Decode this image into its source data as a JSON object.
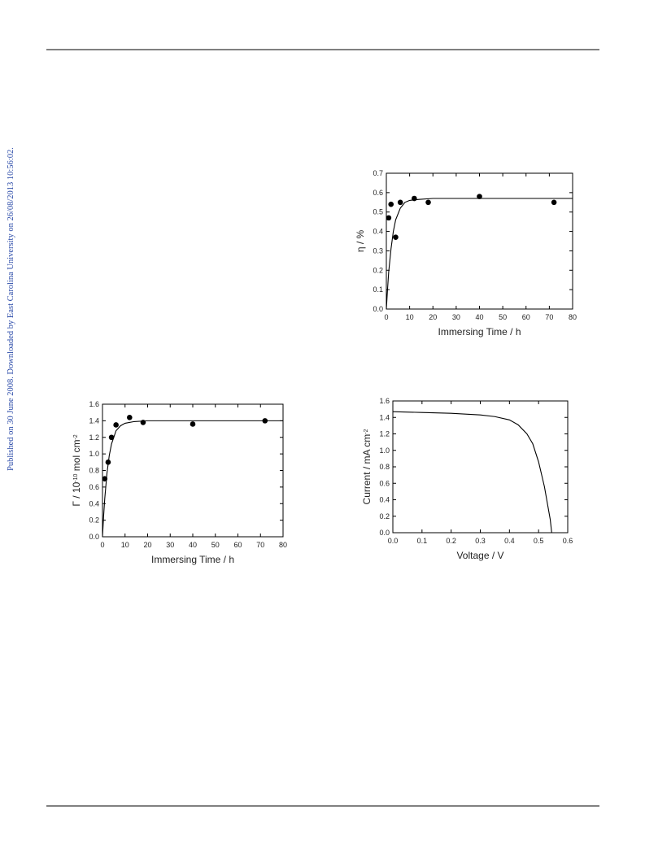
{
  "side_note": "Published on 30 June 2008. Downloaded by East Carolina University on 26/08/2013 10:56:02.",
  "chart_data": [
    {
      "type": "scatter",
      "x_label": "Immersing Time / h",
      "y_label": [
        "η / %"
      ],
      "xlim": [
        0,
        80
      ],
      "xticks": [
        0,
        10,
        20,
        30,
        40,
        50,
        60,
        70,
        80
      ],
      "ylim": [
        0,
        0.7
      ],
      "yticks": [
        {
          "value": 0,
          "label": "0.0"
        },
        0.1,
        0.2,
        0.3,
        0.4,
        0.5,
        0.6,
        0.7
      ],
      "series": [
        {
          "type": "scatter",
          "color": "#000000",
          "x": [
            1,
            2,
            4,
            6,
            12,
            18,
            40,
            72
          ],
          "values": [
            0.47,
            0.54,
            0.37,
            0.55,
            0.57,
            0.55,
            0.58,
            0.55
          ]
        },
        {
          "type": "line",
          "color": "#000000",
          "x": [
            0,
            0.5,
            1,
            2,
            3,
            4,
            6,
            8,
            10,
            14,
            20,
            30,
            80
          ],
          "values": [
            0,
            0.1,
            0.19,
            0.31,
            0.4,
            0.46,
            0.52,
            0.55,
            0.56,
            0.565,
            0.57,
            0.57,
            0.57
          ]
        }
      ]
    },
    {
      "type": "scatter",
      "x_label": "Immersing Time / h",
      "y_label": [
        "Γ / 10",
        "-10",
        " mol cm",
        "-2"
      ],
      "xlim": [
        0,
        80
      ],
      "xticks": [
        0,
        10,
        20,
        30,
        40,
        50,
        60,
        70,
        80
      ],
      "ylim": [
        0,
        1.6
      ],
      "yticks": [
        {
          "value": 0,
          "label": "0.0"
        },
        0.2,
        0.4,
        0.6,
        0.8,
        {
          "value": 1,
          "label": "1.0"
        },
        1.2,
        1.4,
        1.6
      ],
      "series": [
        {
          "type": "scatter",
          "color": "#000000",
          "x": [
            1,
            2.5,
            4,
            6,
            12,
            18,
            40,
            72
          ],
          "values": [
            0.7,
            0.9,
            1.2,
            1.35,
            1.44,
            1.38,
            1.36,
            1.4
          ]
        },
        {
          "type": "line",
          "color": "#000000",
          "x": [
            0,
            0.5,
            1,
            2,
            3,
            4,
            6,
            8,
            10,
            14,
            20,
            30,
            80
          ],
          "values": [
            0,
            0.25,
            0.46,
            0.77,
            0.98,
            1.12,
            1.28,
            1.34,
            1.37,
            1.39,
            1.4,
            1.4,
            1.4
          ]
        }
      ]
    },
    {
      "type": "line",
      "x_label": "Voltage / V",
      "y_label": [
        "Current / mA cm",
        "-2"
      ],
      "xlim": [
        0,
        0.6
      ],
      "xticks": [
        {
          "value": 0,
          "label": "0.0"
        },
        0.1,
        0.2,
        0.3,
        0.4,
        0.5,
        0.6
      ],
      "ylim": [
        0,
        1.6
      ],
      "yticks": [
        {
          "value": 0,
          "label": "0.0"
        },
        0.2,
        0.4,
        0.6,
        0.8,
        {
          "value": 1,
          "label": "1.0"
        },
        1.2,
        1.4,
        1.6
      ],
      "series": [
        {
          "type": "line",
          "color": "#000000",
          "x": [
            0,
            0.1,
            0.2,
            0.3,
            0.35,
            0.4,
            0.43,
            0.46,
            0.48,
            0.5,
            0.52,
            0.54,
            0.545
          ],
          "values": [
            1.47,
            1.46,
            1.45,
            1.43,
            1.41,
            1.37,
            1.31,
            1.2,
            1.08,
            0.86,
            0.56,
            0.16,
            0
          ]
        }
      ]
    }
  ]
}
